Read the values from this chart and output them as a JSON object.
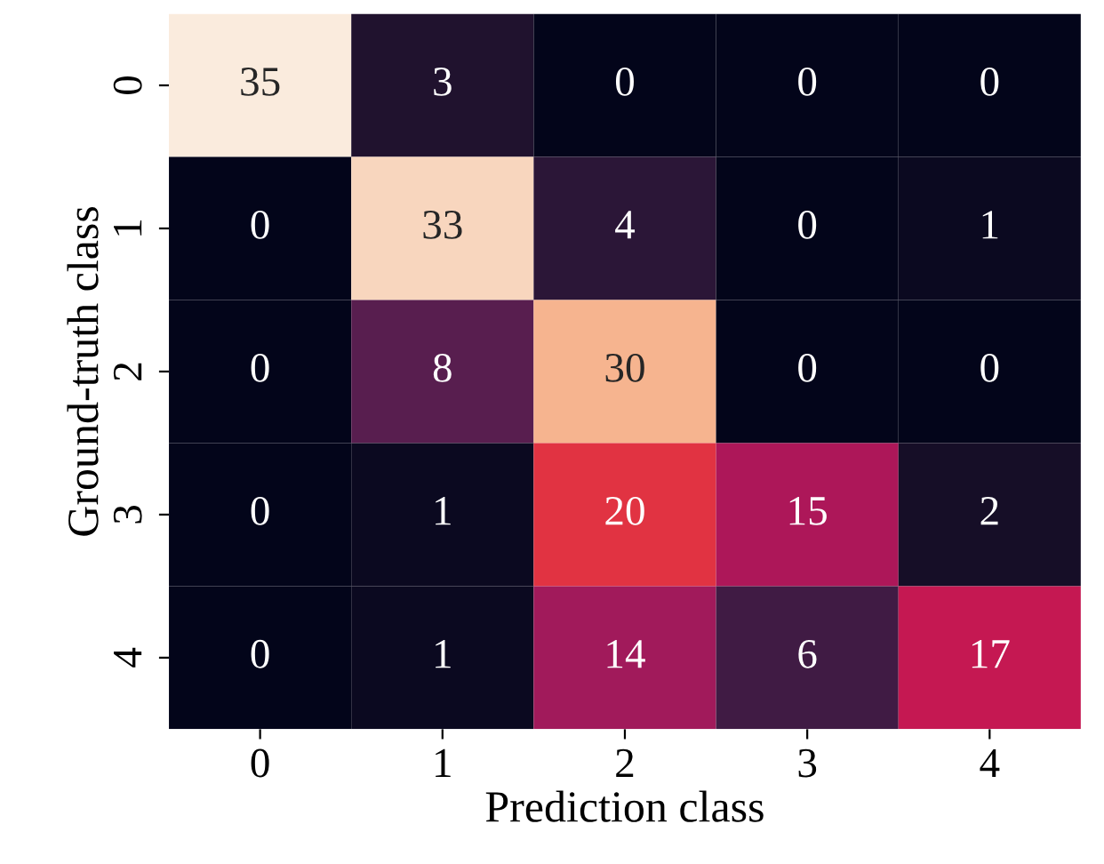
{
  "chart_data": {
    "type": "heatmap",
    "xlabel": "Prediction class",
    "ylabel": "Ground-truth class",
    "categories": [
      "0",
      "1",
      "2",
      "3",
      "4"
    ],
    "y_categories": [
      "0",
      "1",
      "2",
      "3",
      "4"
    ],
    "cells": [
      [
        35,
        3,
        0,
        0,
        0
      ],
      [
        0,
        33,
        4,
        0,
        1
      ],
      [
        0,
        8,
        30,
        0,
        0
      ],
      [
        0,
        1,
        20,
        15,
        2
      ],
      [
        0,
        1,
        14,
        6,
        17
      ]
    ],
    "data_labels": true
  }
}
